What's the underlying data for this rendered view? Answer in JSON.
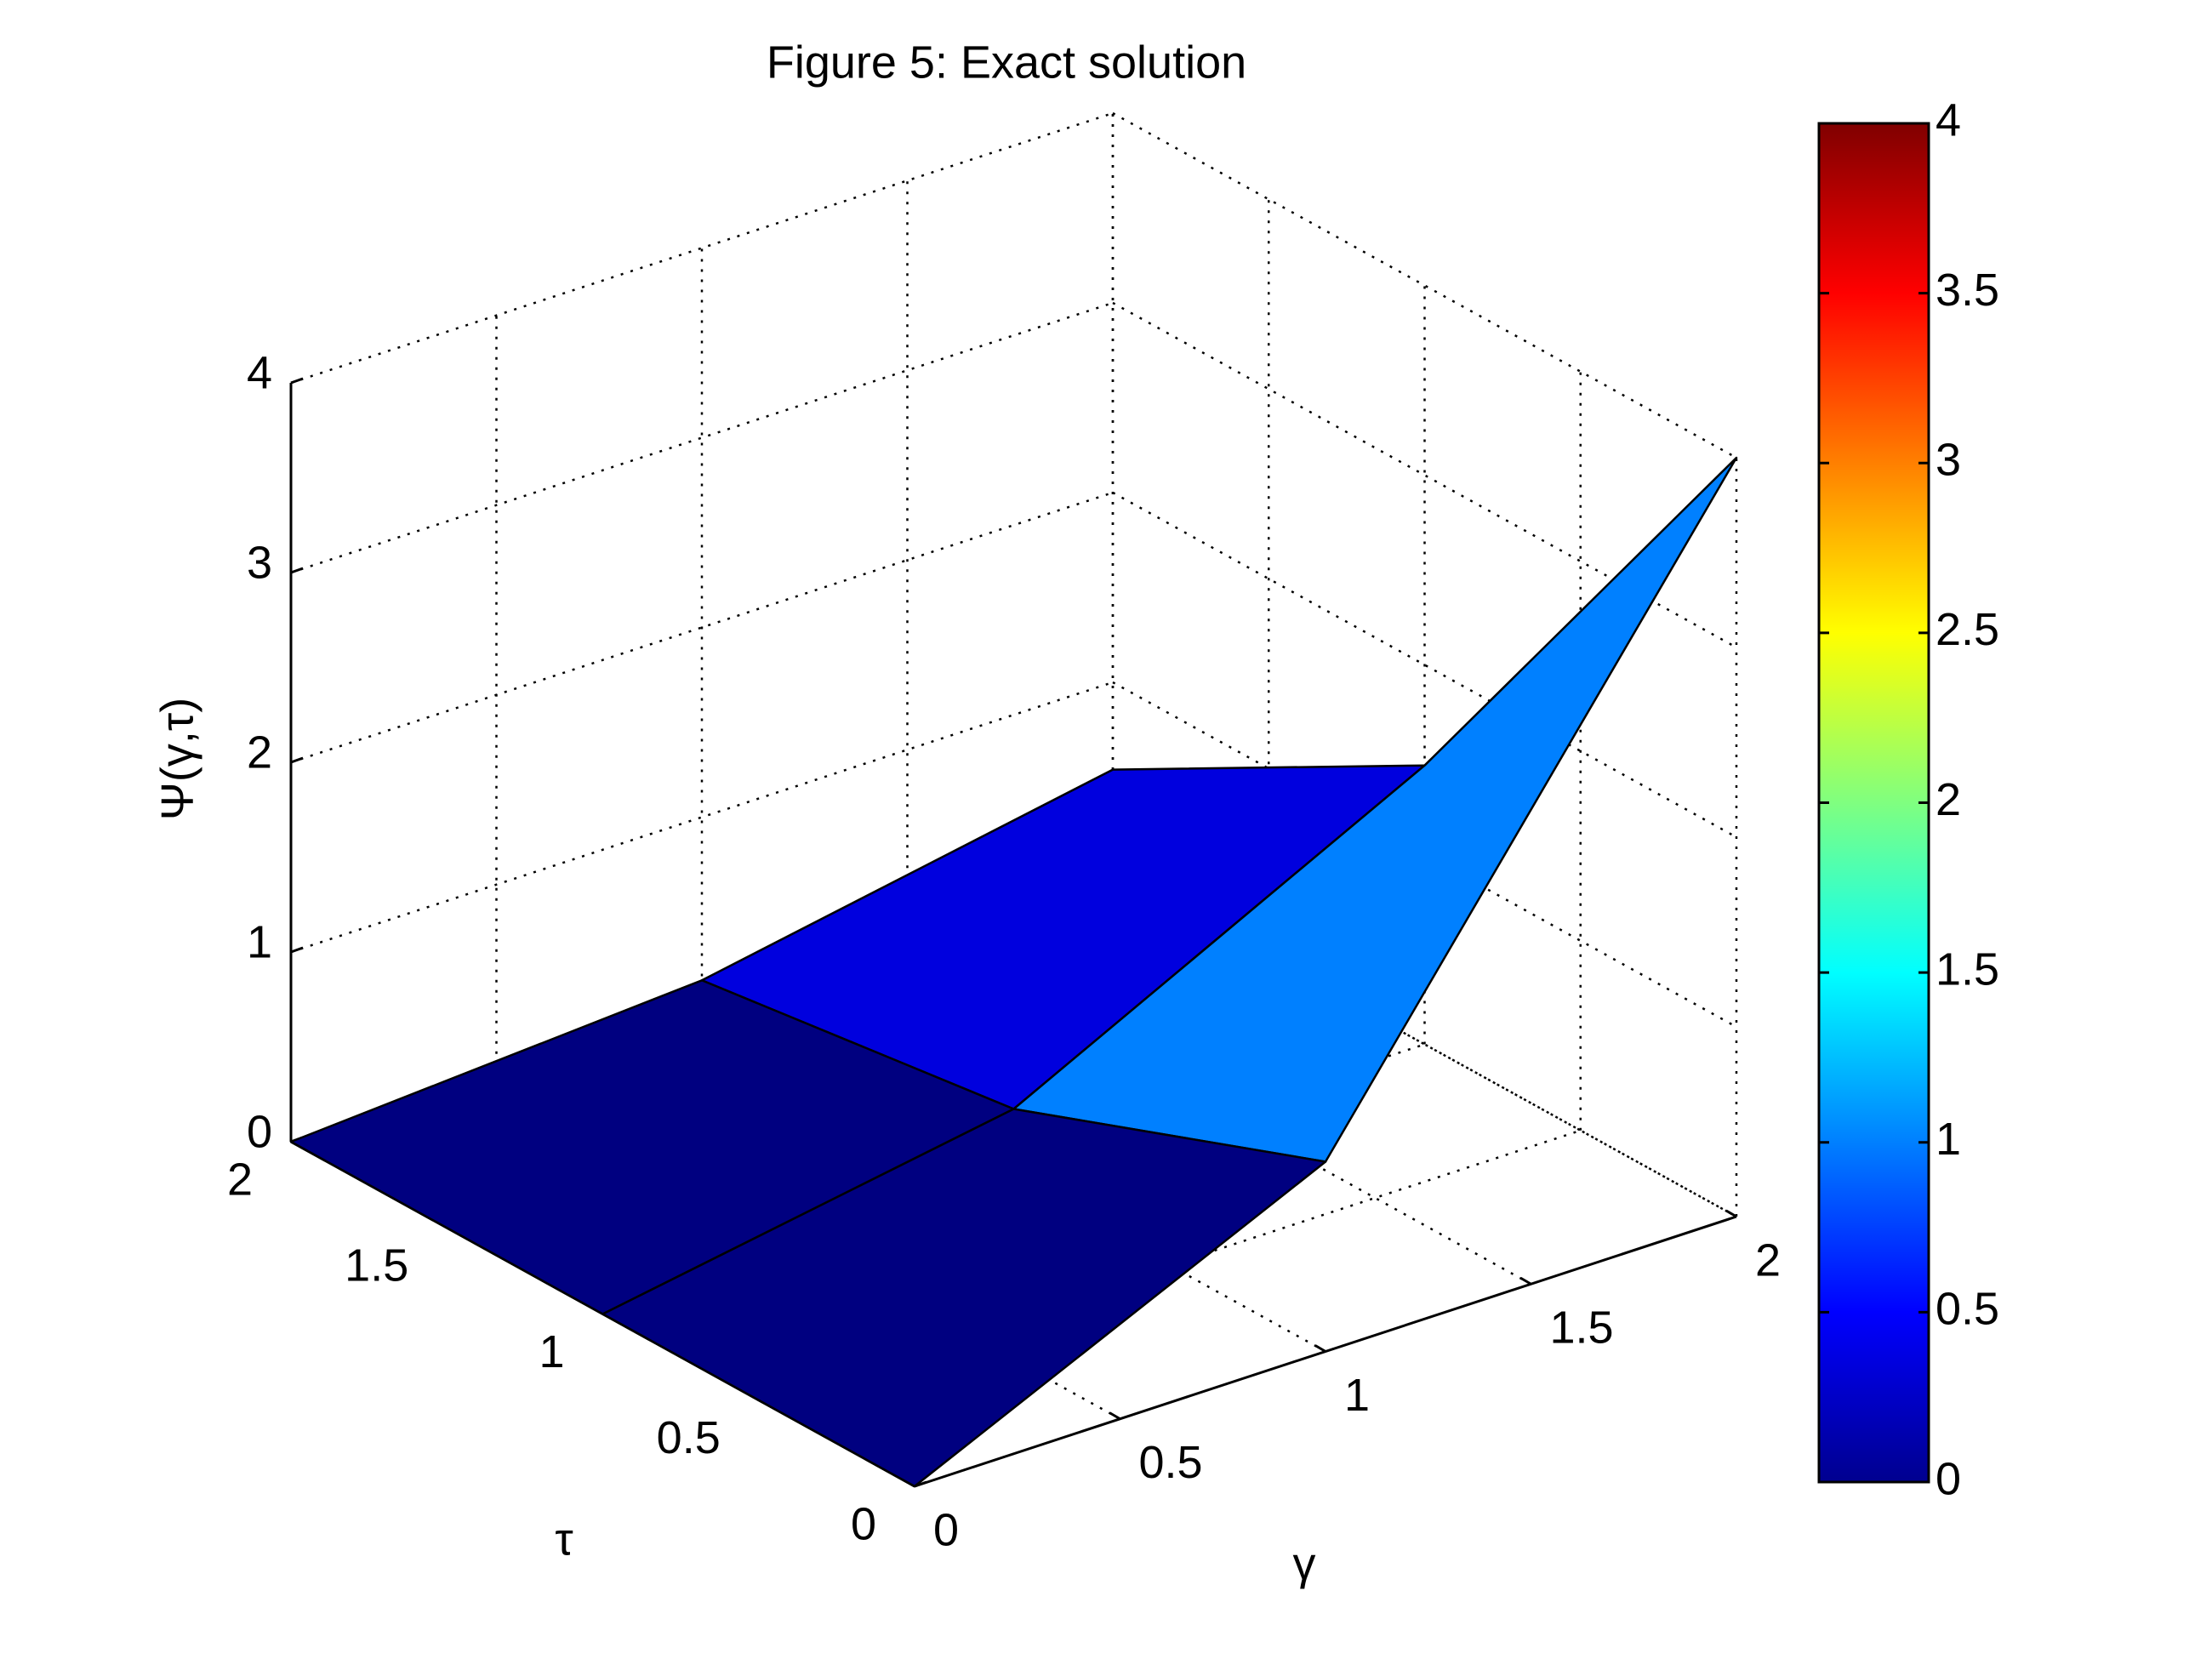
{
  "chart_data": {
    "type": "surface",
    "title": "Figure 5: Exact solution",
    "xlabel": "γ",
    "ylabel": "τ",
    "zlabel": "Ψ(γ,τ)",
    "x": [
      0,
      1,
      2
    ],
    "y": [
      0,
      1,
      2
    ],
    "z": [
      [
        0,
        1,
        4
      ],
      [
        0,
        0.37,
        1.47
      ],
      [
        0,
        0.14,
        0.54
      ]
    ],
    "xlim": [
      0,
      2
    ],
    "ylim": [
      0,
      2
    ],
    "zlim": [
      0,
      4
    ],
    "xticks": [
      0,
      0.5,
      1,
      1.5,
      2
    ],
    "yticks": [
      0,
      0.5,
      1,
      1.5,
      2
    ],
    "zticks": [
      0,
      1,
      2,
      3,
      4
    ],
    "colormap": "jet",
    "clim": [
      0,
      4
    ],
    "cticks": [
      0,
      0.5,
      1,
      1.5,
      2,
      2.5,
      3,
      3.5,
      4
    ],
    "grid": true,
    "colorbar": true
  }
}
